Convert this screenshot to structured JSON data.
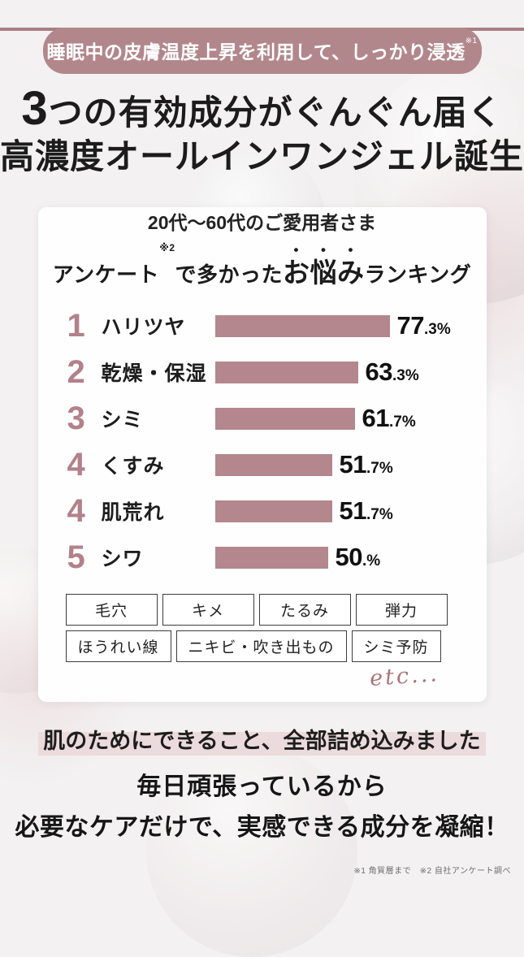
{
  "page": {
    "badge": "睡眠中の皮膚温度上昇を利用して、しっかり浸透",
    "badge_note": "※1",
    "headline_big": "3",
    "headline_line1_rest": "つの有効成分がぐんぐん届く",
    "headline_line2": "高濃度オールインワンジェル誕生",
    "footer_highlight": "肌のためにできること、全部詰め込みました",
    "footer_line1": "毎日頑張っているから",
    "footer_line2": "必要なケアだけで、実感できる成分を凝縮！",
    "footnotes": "※1 角質層まで　※2 自社アンケート調べ"
  },
  "card": {
    "audience": "20代〜60代のご愛用者さま",
    "title_prefix": "アンケート",
    "title_note": "※2",
    "title_mid": "で多かった",
    "title_emphasis": "お悩み",
    "title_suffix": "ランキング",
    "tags_row1": [
      "毛穴",
      "キメ",
      "たるみ",
      "弾力"
    ],
    "tags_row2": [
      "ほうれい線",
      "ニキビ・吹き出もの",
      "シミ予防"
    ],
    "etc": "etc..."
  },
  "chart_data": {
    "type": "bar",
    "orientation": "horizontal",
    "title": "アンケート※2で多かったお悩みランキング",
    "subtitle": "20代〜60代のご愛用者さま",
    "categories": [
      "ハリツヤ",
      "乾燥・保湿",
      "シミ",
      "くすみ",
      "肌荒れ",
      "シワ"
    ],
    "values": [
      77.3,
      63.3,
      61.7,
      51.7,
      51.7,
      50.0
    ],
    "xlim": [
      0,
      100
    ],
    "bar_color": "#b3878d",
    "rows": [
      {
        "rank": "1",
        "label": "ハリツヤ",
        "pct": 77.3,
        "value_int": "77",
        "value_dec": ".3",
        "unit": "%"
      },
      {
        "rank": "2",
        "label": "乾燥・保湿",
        "pct": 63.3,
        "value_int": "63",
        "value_dec": ".3",
        "unit": "%"
      },
      {
        "rank": "3",
        "label": "シミ",
        "pct": 61.7,
        "value_int": "61",
        "value_dec": ".7",
        "unit": "%"
      },
      {
        "rank": "4",
        "label": "くすみ",
        "pct": 51.7,
        "value_int": "51",
        "value_dec": ".7",
        "unit": "%"
      },
      {
        "rank": "4",
        "label": "肌荒れ",
        "pct": 51.7,
        "value_int": "51",
        "value_dec": ".7",
        "unit": "%"
      },
      {
        "rank": "5",
        "label": "シワ",
        "pct": 50.0,
        "value_int": "50",
        "value_dec": ".",
        "unit": "%"
      }
    ]
  },
  "colors": {
    "accent_mauve": "#b2878c",
    "bar": "#b3878d",
    "rank_number": "#b2818a",
    "highlight": "#ecdbdc",
    "text_dark": "#1d1d1d",
    "background": "#f3f1f2"
  }
}
